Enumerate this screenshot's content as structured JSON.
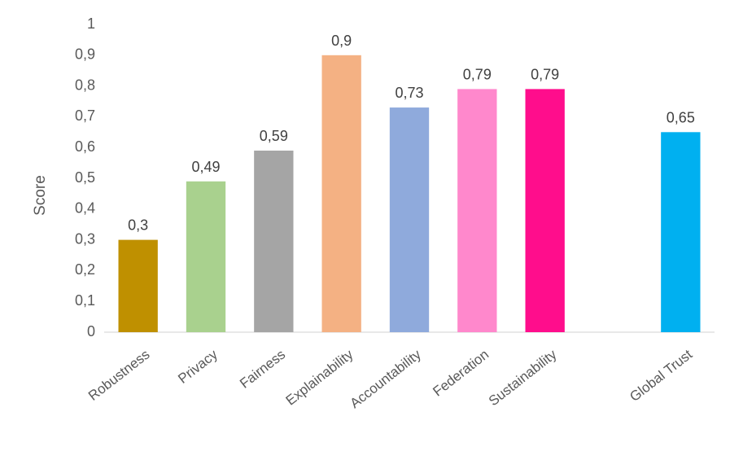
{
  "chart_data": {
    "type": "bar",
    "categories": [
      "Robustness",
      "Privacy",
      "Fairness",
      "Explainability",
      "Accountability",
      "Federation",
      "Sustainability",
      "",
      "Global Trust"
    ],
    "values": [
      0.3,
      0.49,
      0.59,
      0.9,
      0.73,
      0.79,
      0.79,
      null,
      0.65
    ],
    "data_labels": [
      "0,3",
      "0,49",
      "0,59",
      "0,9",
      "0,73",
      "0,79",
      "0,79",
      "",
      "0,65"
    ],
    "colors": [
      "#BF9000",
      "#A9D18E",
      "#A5A5A5",
      "#F4B183",
      "#8FAADC",
      "#FF88CC",
      "#FF0D8C",
      "",
      "#00B0F0"
    ],
    "ylabel": "Score",
    "xlabel": "",
    "ylim": [
      0,
      1
    ],
    "yticks": [
      "0",
      "0,1",
      "0,2",
      "0,3",
      "0,4",
      "0,5",
      "0,6",
      "0,7",
      "0,8",
      "0,9",
      "1"
    ],
    "grid": false,
    "legend": "none"
  }
}
